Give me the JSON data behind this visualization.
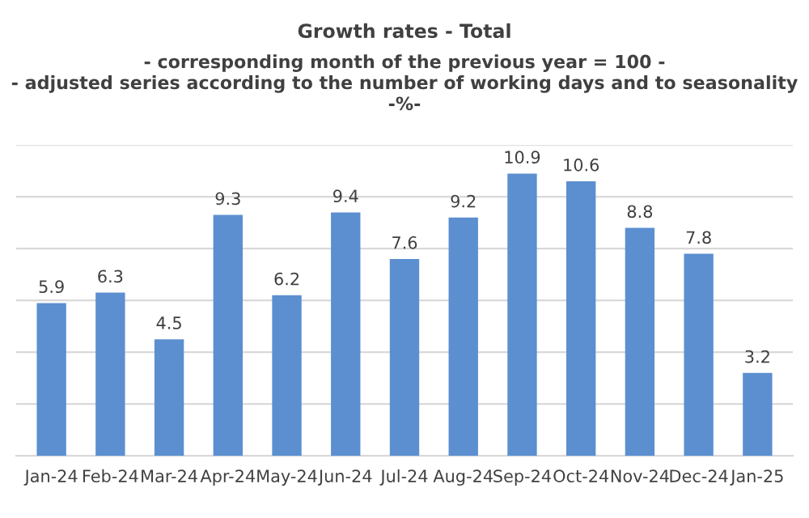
{
  "chart_data": {
    "type": "bar",
    "title": "Growth rates - Total",
    "subtitle": "- corresponding month of the previous year = 100 -\n- adjusted series according to the number of working days and to seasonality\n-%-",
    "categories": [
      "Jan-24",
      "Feb-24",
      "Mar-24",
      "Apr-24",
      "May-24",
      "Jun-24",
      "Jul-24",
      "Aug-24",
      "Sep-24",
      "Oct-24",
      "Nov-24",
      "Dec-24",
      "Jan-25"
    ],
    "values": [
      5.9,
      6.3,
      4.5,
      9.3,
      6.2,
      9.4,
      7.6,
      9.2,
      10.9,
      10.6,
      8.8,
      7.8,
      3.2
    ],
    "color": "#5b8fd0",
    "ylim": [
      0,
      12
    ],
    "yticks": [
      {
        "value": 0,
        "label": null
      },
      {
        "value": 2,
        "label": null
      },
      {
        "value": 4,
        "label": null
      },
      {
        "value": 6,
        "label": null
      },
      {
        "value": 8,
        "label": null
      },
      {
        "value": 10,
        "label": null
      },
      {
        "value": 12,
        "label": null
      }
    ],
    "tick_labels": "x",
    "grid": "y",
    "data_labels": true
  }
}
